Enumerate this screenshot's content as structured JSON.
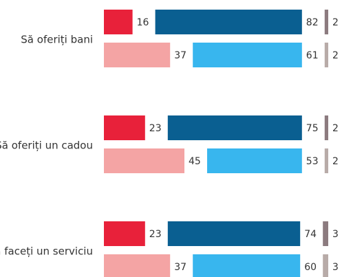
{
  "chart_data": {
    "type": "bar",
    "categories": [
      "Să oferiți bani",
      "Să oferiți un cadou",
      "Să faceți un serviciu"
    ],
    "series": [
      {
        "color": "#e8213a",
        "values": [
          16,
          23,
          23
        ]
      },
      {
        "color": "#0a5f91",
        "values": [
          82,
          75,
          74
        ]
      },
      {
        "color": "#8c7b7f",
        "values": [
          2,
          2,
          3
        ]
      },
      {
        "color": "#f4a4a4",
        "values": [
          37,
          45,
          37
        ]
      },
      {
        "color": "#38b6ee",
        "values": [
          61,
          53,
          60
        ]
      },
      {
        "color": "#b8aba8",
        "values": [
          2,
          2,
          3
        ]
      }
    ]
  }
}
